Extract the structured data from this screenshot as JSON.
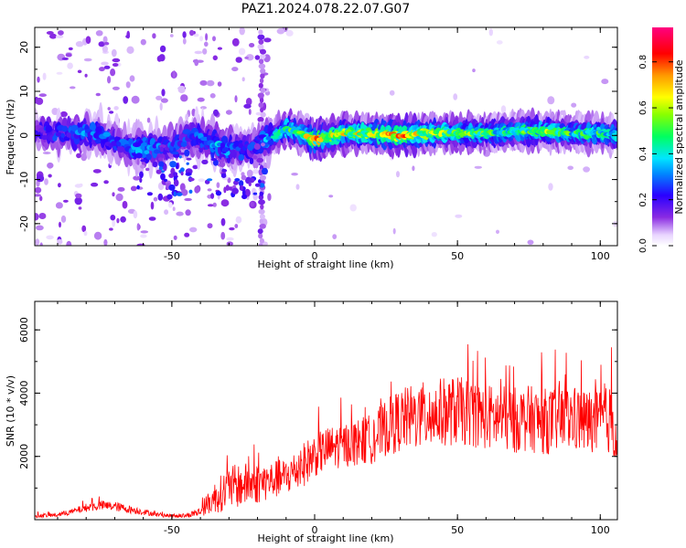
{
  "title": "PAZ1.2024.078.22.07.G07",
  "chart_data": [
    {
      "type": "heatmap",
      "xlabel": "Height of straight line (km)",
      "ylabel": "Frequency (Hz)",
      "xlim": [
        -98,
        106
      ],
      "ylim": [
        -25,
        24.5
      ],
      "xticks": [
        -50,
        0,
        50,
        100
      ],
      "yticks": [
        -20,
        -10,
        0,
        10,
        20
      ],
      "grid": false,
      "colorbar": {
        "label": "Normalized spectral amplitude",
        "range": [
          0,
          0.95
        ],
        "ticks": [
          0.0,
          0.2,
          0.4,
          0.6,
          0.8
        ],
        "tick_labels": [
          "0.0",
          "0.2",
          "0.4",
          "0.6",
          "0.8"
        ],
        "placement": "right"
      },
      "ridge": {
        "description_points_x": [
          -98,
          -90,
          -80,
          -75,
          -70,
          -65,
          -60,
          -55,
          -50,
          -45,
          -40,
          -35,
          -30,
          -25,
          -20,
          -15,
          -10,
          -5,
          0,
          5,
          10,
          20,
          30,
          40,
          50,
          60,
          70,
          80,
          90,
          100,
          106
        ],
        "frequency_hz": [
          1,
          0.5,
          0.5,
          0,
          -1.5,
          -2.5,
          -2.5,
          -3,
          -2,
          0,
          -1,
          -2,
          -3,
          -3,
          -2,
          -0.5,
          1.5,
          0.5,
          -1,
          -0.5,
          0.5,
          0.5,
          0,
          0.5,
          0.5,
          0.5,
          1,
          1,
          0.5,
          0.5,
          0
        ],
        "amplitude": [
          0.2,
          0.25,
          0.3,
          0.3,
          0.25,
          0.3,
          0.35,
          0.3,
          0.25,
          0.25,
          0.3,
          0.35,
          0.3,
          0.25,
          0.25,
          0.4,
          0.55,
          0.6,
          0.75,
          0.6,
          0.65,
          0.6,
          0.75,
          0.6,
          0.55,
          0.5,
          0.45,
          0.55,
          0.5,
          0.5,
          0.45
        ]
      }
    },
    {
      "type": "line",
      "xlabel": "Height of straight line (km)",
      "ylabel": "SNR (10 * v/v)",
      "xlim": [
        -98,
        106
      ],
      "ylim": [
        0,
        6900
      ],
      "xticks": [
        -50,
        0,
        50,
        100
      ],
      "yticks": [
        2000,
        4000,
        6000
      ],
      "grid": false,
      "series": [
        {
          "color": "#ff0000",
          "x": [
            -98,
            -90,
            -85,
            -80,
            -75,
            -70,
            -65,
            -60,
            -55,
            -50,
            -45,
            -40,
            -38,
            -35,
            -30,
            -25,
            -20,
            -15,
            -10,
            -5,
            0,
            5,
            10,
            15,
            20,
            25,
            30,
            35,
            40,
            45,
            50,
            55,
            60,
            65,
            70,
            75,
            80,
            85,
            90,
            95,
            100,
            104,
            106
          ],
          "mean": [
            120,
            150,
            250,
            380,
            450,
            420,
            330,
            250,
            160,
            120,
            130,
            250,
            450,
            700,
            1000,
            1100,
            1150,
            1250,
            1350,
            1650,
            2050,
            2250,
            2350,
            2450,
            2550,
            2900,
            3150,
            3250,
            3300,
            3400,
            3450,
            3350,
            3250,
            3200,
            3150,
            3200,
            3100,
            3150,
            3200,
            3100,
            3050,
            3200,
            2500
          ],
          "spread": [
            60,
            70,
            90,
            130,
            160,
            150,
            130,
            100,
            70,
            60,
            70,
            150,
            300,
            500,
            700,
            700,
            650,
            600,
            600,
            700,
            700,
            700,
            700,
            750,
            800,
            900,
            1000,
            1050,
            1100,
            1100,
            1100,
            1050,
            1050,
            1050,
            1050,
            1050,
            1050,
            1050,
            1050,
            1050,
            1050,
            1100,
            1200
          ]
        }
      ]
    }
  ]
}
